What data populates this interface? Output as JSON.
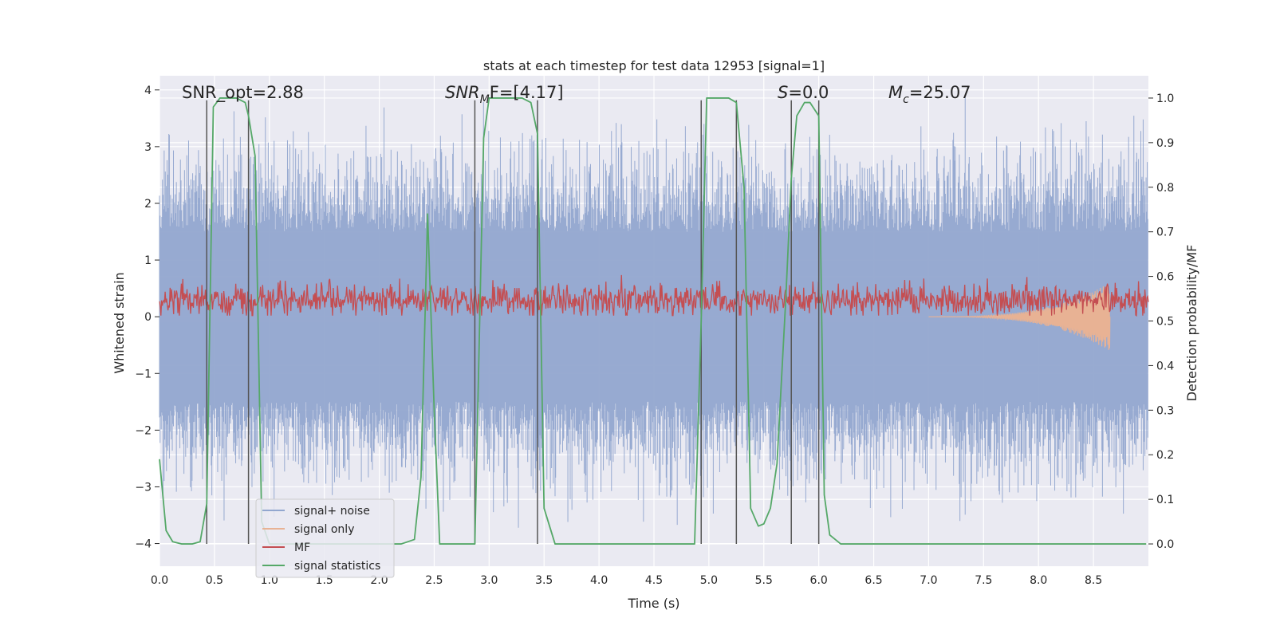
{
  "chart_data": {
    "type": "line",
    "title": "stats at each timestep for test data 12953 [signal=1]",
    "xlabel": "Time (s)",
    "ylabel_left": "Whitened strain",
    "ylabel_right": "Detection probability/MF",
    "xlim": [
      0,
      9.0
    ],
    "ylim_left": [
      -4.4,
      4.25
    ],
    "ylim_right": [
      -0.05,
      1.05
    ],
    "x_ticks": [
      0.0,
      0.5,
      1.0,
      1.5,
      2.0,
      2.5,
      3.0,
      3.5,
      4.0,
      4.5,
      5.0,
      5.5,
      6.0,
      6.5,
      7.0,
      7.5,
      8.0,
      8.5
    ],
    "x_tick_labels": [
      "0.0",
      "0.5",
      "1.0",
      "1.5",
      "2.0",
      "2.5",
      "3.0",
      "3.5",
      "4.0",
      "4.5",
      "5.0",
      "5.5",
      "6.0",
      "6.5",
      "7.0",
      "7.5",
      "8.0",
      "8.5"
    ],
    "y_ticks_left": [
      4,
      3,
      2,
      1,
      0,
      -1,
      -2,
      -3,
      -4
    ],
    "y_tick_labels_left": [
      "4",
      "3",
      "2",
      "1",
      "0",
      "−1",
      "−2",
      "−3",
      "−4"
    ],
    "y_ticks_right": [
      1.0,
      0.9,
      0.8,
      0.7,
      0.6,
      0.5,
      0.4,
      0.3,
      0.2,
      0.1,
      0.0
    ],
    "y_tick_labels_right": [
      "1.0",
      "0.9",
      "0.8",
      "0.7",
      "0.6",
      "0.5",
      "0.4",
      "0.3",
      "0.2",
      "0.1",
      "0.0"
    ],
    "annotations": {
      "snr_opt": "SNR_opt=2.88",
      "snr_mf_sym": "SNR",
      "snr_mf_sub": "M",
      "snr_mf_rest": "F=[4.17]",
      "s_sym": "S",
      "s_rest": "=0.0",
      "mc_sym": "M",
      "mc_sub": "c",
      "mc_rest": "=25.07"
    },
    "legend": [
      {
        "label": "signal+ noise",
        "color": "#92a7cf"
      },
      {
        "label": "signal only",
        "color": "#e8b294"
      },
      {
        "label": "MF",
        "color": "#c44e52"
      },
      {
        "label": "signal statistics",
        "color": "#55a868"
      }
    ],
    "vertical_lines_x": [
      0.43,
      0.81,
      2.87,
      3.44,
      4.93,
      5.25,
      5.75,
      6.0
    ],
    "series": [
      {
        "name": "signal+ noise",
        "axis": "left",
        "description": "whitened noisy strain, roughly N(0,1), range about -4 to 3.9",
        "envelope_approx": {
          "typical_min": -2.6,
          "typical_max": 2.6,
          "extreme_min": -4.0,
          "extreme_max": 3.9
        }
      },
      {
        "name": "signal only",
        "axis": "left",
        "description": "chirp growing near the end, max amplitude about 0.6 at t=8.65 s",
        "peak_time": 8.65,
        "peak_amplitude": 0.6
      },
      {
        "name": "MF",
        "axis": "left",
        "description": "matched-filter output oscillating around 0.3, range about 0.05 to 1.0",
        "mean": 0.3
      },
      {
        "name": "signal statistics",
        "axis": "right",
        "x": [
          0.0,
          0.06,
          0.12,
          0.2,
          0.3,
          0.37,
          0.43,
          0.49,
          0.55,
          0.6,
          0.7,
          0.78,
          0.81,
          0.87,
          0.93,
          1.0,
          1.5,
          2.0,
          2.2,
          2.32,
          2.38,
          2.44,
          2.5,
          2.55,
          2.6,
          2.87,
          2.95,
          3.0,
          3.15,
          3.3,
          3.38,
          3.44,
          3.5,
          3.6,
          3.65,
          4.0,
          4.5,
          4.87,
          4.93,
          4.98,
          5.03,
          5.1,
          5.18,
          5.25,
          5.32,
          5.38,
          5.45,
          5.5,
          5.56,
          5.62,
          5.7,
          5.75,
          5.8,
          5.87,
          5.92,
          6.0,
          6.05,
          6.1,
          6.2,
          6.3,
          6.5,
          8.98
        ],
        "y": [
          0.19,
          0.03,
          0.005,
          0.0,
          0.0,
          0.005,
          0.09,
          0.98,
          1.0,
          1.0,
          1.0,
          0.99,
          0.96,
          0.87,
          0.05,
          0.0,
          0.0,
          0.0,
          0.0,
          0.01,
          0.15,
          0.74,
          0.3,
          0.0,
          0.0,
          0.0,
          0.91,
          1.0,
          1.0,
          1.0,
          0.99,
          0.92,
          0.08,
          0.0,
          0.0,
          0.0,
          0.0,
          0.0,
          0.5,
          1.0,
          1.0,
          1.0,
          1.0,
          0.99,
          0.8,
          0.08,
          0.04,
          0.045,
          0.08,
          0.18,
          0.55,
          0.82,
          0.96,
          0.99,
          0.99,
          0.96,
          0.11,
          0.02,
          0.0,
          0.0,
          0.0,
          0.0
        ]
      }
    ]
  }
}
